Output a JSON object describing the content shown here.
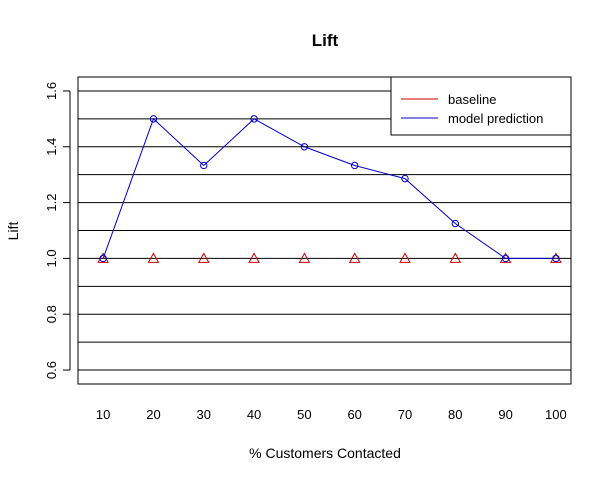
{
  "chart_data": {
    "type": "line",
    "title": "Lift",
    "xlabel": "% Customers Contacted",
    "ylabel": "Lift",
    "x": [
      10,
      20,
      30,
      40,
      50,
      60,
      70,
      80,
      90,
      100
    ],
    "xticks": [
      "10",
      "20",
      "30",
      "40",
      "50",
      "60",
      "70",
      "80",
      "90",
      "100"
    ],
    "yticks": [
      "0.6",
      "0.8",
      "1.0",
      "1.2",
      "1.4",
      "1.6"
    ],
    "ylim": [
      0.55,
      1.65
    ],
    "grid_lines_y": [
      0.6,
      0.7,
      0.8,
      0.9,
      1.0,
      1.1,
      1.2,
      1.3,
      1.4,
      1.5,
      1.6
    ],
    "legend_position": "top-right",
    "series": [
      {
        "name": "baseline",
        "color": "#cc0000",
        "marker": "triangle",
        "line": false,
        "values": [
          1.0,
          1.0,
          1.0,
          1.0,
          1.0,
          1.0,
          1.0,
          1.0,
          1.0,
          1.0
        ]
      },
      {
        "name": "model prediction",
        "color": "#0000cc",
        "marker": "circle",
        "line": true,
        "values": [
          1.0,
          1.5,
          1.333,
          1.5,
          1.4,
          1.333,
          1.286,
          1.125,
          1.0,
          1.0
        ]
      }
    ]
  }
}
